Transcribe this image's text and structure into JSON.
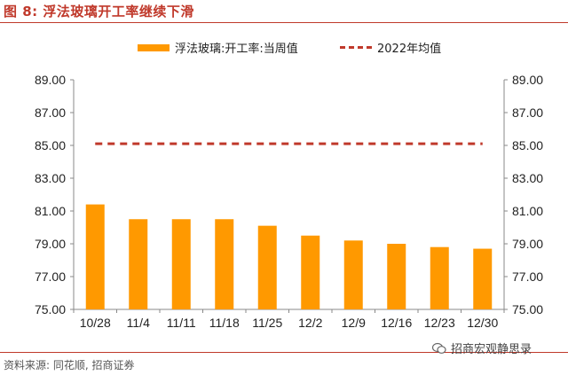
{
  "figure_title": "图 8:  浮法玻璃开工率继续下滑",
  "source_text": "资料来源:  同花顺, 招商证券",
  "watermark_text": "招商宏观静思录",
  "colors": {
    "bar": "#ff9900",
    "avg_line": "#c0392b",
    "title": "#c0392b",
    "axis": "#888888"
  },
  "chart_data": {
    "type": "bar",
    "title": "",
    "categories": [
      "10/28",
      "11/4",
      "11/11",
      "11/18",
      "11/25",
      "12/2",
      "12/9",
      "12/16",
      "12/23",
      "12/30"
    ],
    "series": [
      {
        "name": "浮法玻璃:开工率:当周值",
        "type": "bar",
        "values": [
          81.4,
          80.5,
          80.5,
          80.5,
          80.1,
          79.5,
          79.2,
          79.0,
          78.8,
          78.7
        ]
      },
      {
        "name": "2022年均值",
        "type": "line-dashed",
        "values": [
          85.1,
          85.1,
          85.1,
          85.1,
          85.1,
          85.1,
          85.1,
          85.1,
          85.1,
          85.1
        ]
      }
    ],
    "ylim": [
      75,
      89
    ],
    "yticks": [
      "75.00",
      "77.00",
      "79.00",
      "81.00",
      "83.00",
      "85.00",
      "87.00",
      "89.00"
    ],
    "secondary_ylim": [
      75,
      89
    ],
    "legend_position": "top",
    "grid": false
  }
}
